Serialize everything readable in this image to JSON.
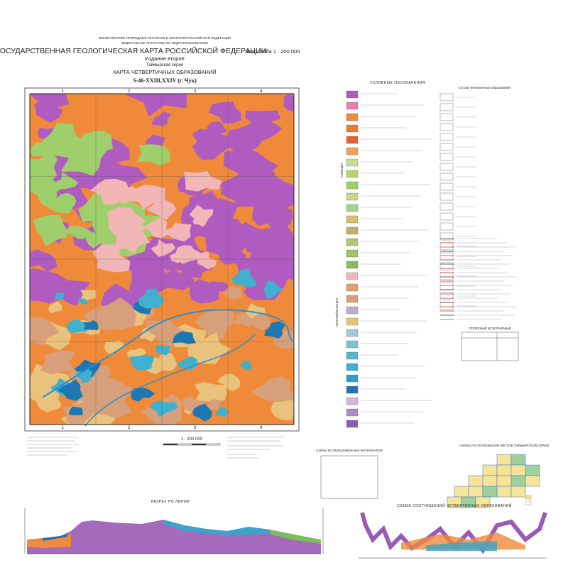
{
  "header": {
    "ministry": "МИНИСТЕРСТВО ПРИРОДНЫХ РЕСУРСОВ И ЭКОЛОГИИ РОССИЙСКОЙ ФЕДЕРАЦИИ",
    "agency": "ФЕДЕРАЛЬНОЕ АГЕНТСТВО ПО НЕДРОПОЛЬЗОВАНИЮ",
    "title": "ГОСУДАРСТВЕННАЯ ГЕОЛОГИЧЕСКАЯ КАРТА РОССИЙСКОЙ ФЕДЕРАЦИИ",
    "scale_title": "масштаба 1 : 200 000",
    "edition": "Издание второе",
    "series": "Таймырская серия",
    "map_title": "КАРТА ЧЕТВЕРТИЧНЫХ ОБРАЗОВАНИЙ",
    "sheet": "S-46-XXIII,XXIV (г. Чук)"
  },
  "map": {
    "grid_top": [
      "1",
      "2",
      "3",
      "4"
    ],
    "scale": "1 : 200 000"
  },
  "legend": {
    "title": "УСЛОВНЫЕ ОБОЗНАЧЕНИЯ",
    "composition_title": "Состав четвертичных образований",
    "holocene": "ГОЛОЦЕН",
    "neopleistocene": "НЕОПЛЕЙСТОЦЕН",
    "minerals_title": "ПОЛЕЗНЫЕ ИСКОПАЕМЫЕ"
  },
  "schemes": {
    "materials": "СХЕМА ИСПОЛЬЗОВАННЫХ МАТЕРИАЛОВ",
    "layout": "СХЕМА РАСПОЛОЖЕНИЯ ЛИСТОВ ТАЙМЫРСКОЙ СЕРИИ",
    "section": "РАЗРЕЗ ПО ЛИНИИ",
    "relations": "СХЕМА СООТНОШЕНИЙ ЧЕТВЕРТИЧНЫХ ОБРАЗОВАНИЙ"
  }
}
